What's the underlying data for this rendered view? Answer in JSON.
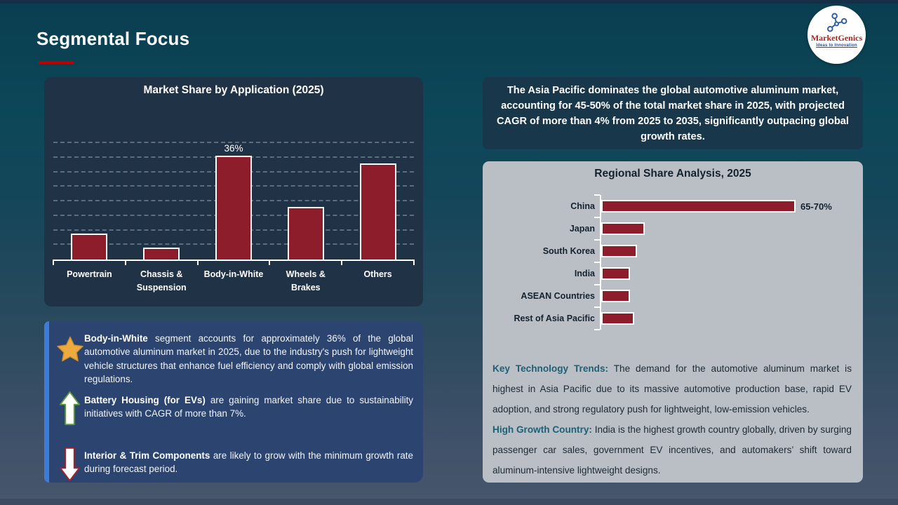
{
  "slide": {
    "title": "Segmental Focus"
  },
  "logo": {
    "name": "MarketGenics",
    "tagline": "Ideas to Innovation"
  },
  "callout": {
    "text": "The Asia Pacific dominates the global automotive aluminum market, accounting for 45-50% of the total market share in 2025, with projected CAGR of more than 4% from 2025 to 2035, significantly outpacing global growth rates."
  },
  "chart_data": [
    {
      "type": "bar",
      "title": "Market Share by Application (2025)",
      "categories": [
        "Powertrain",
        "Chassis & Suspension",
        "Body-in-White",
        "Wheels & Brakes",
        "Others"
      ],
      "values": [
        9,
        4,
        36,
        18,
        33
      ],
      "unit": "%",
      "data_labels": [
        "",
        "",
        "36%",
        "",
        ""
      ],
      "xlabel": "",
      "ylabel": "",
      "ylim": [
        0,
        40
      ],
      "gridlines": "horizontal dashed every 5%",
      "legend": "none",
      "bar_color": "#8E1D2C"
    },
    {
      "type": "bar",
      "orientation": "horizontal",
      "title": "Regional Share Analysis, 2025",
      "categories": [
        "China",
        "Japan",
        "South Korea",
        "India",
        "ASEAN Countries",
        "Rest of Asia Pacific"
      ],
      "values": [
        67.5,
        15,
        12.5,
        10,
        10,
        11.5
      ],
      "unit": "% (values estimated from bar lengths)",
      "data_labels": [
        "65-70%",
        "",
        "",
        "",
        "",
        ""
      ],
      "xlim": [
        0,
        70
      ],
      "gridlines": "none",
      "legend": "none",
      "bar_color": "#8E1D2C"
    }
  ],
  "highlights": {
    "items": [
      {
        "icon": "star-icon",
        "lead": "Body-in-White",
        "text": "segment accounts for approximately 36% of the global automotive aluminum market in 2025, due to the industry's push for lightweight vehicle structures that enhance fuel efficiency and comply with global emission regulations."
      },
      {
        "icon": "arrow-up-icon",
        "lead": "Battery Housing (for EVs)",
        "text": "are gaining market share due to sustainability initiatives with CAGR of more than 7%."
      },
      {
        "icon": "arrow-down-icon",
        "lead": "Interior & Trim Components",
        "text": "are likely to grow with the minimum growth rate during forecast period."
      }
    ]
  },
  "insights": [
    {
      "lead": "Key Technology Trends:",
      "text": "The demand for the automotive aluminum market is highest in Asia Pacific due to its massive automotive production base, rapid EV adoption, and strong regulatory push for lightweight, low-emission vehicles."
    },
    {
      "lead": "High Growth Country:",
      "text": "India is the highest growth country globally, driven by surging passenger car sales, government EV incentives, and automakers’ shift toward aluminum-intensive lightweight designs."
    }
  ],
  "colors": {
    "bar": "#8E1D2C",
    "bar_border": "#FFFFFF",
    "title_underline_red": "#C00000",
    "chart_panel_navy": "#203346",
    "callout_navy": "#18374A",
    "regional_panel_gray": "#BABFC6",
    "highlight_box_blue": "#2B4470",
    "highlight_stripe_blue": "#3D7CD8",
    "insight_lead_teal": "#1E6075",
    "star_gold": "#EDAA3F",
    "arrow_up_green": "#5B9B3C",
    "arrow_down_red": "#9C2433",
    "logo_name_red": "#A3291F",
    "logo_tagline_blue": "#1F4E9C"
  }
}
